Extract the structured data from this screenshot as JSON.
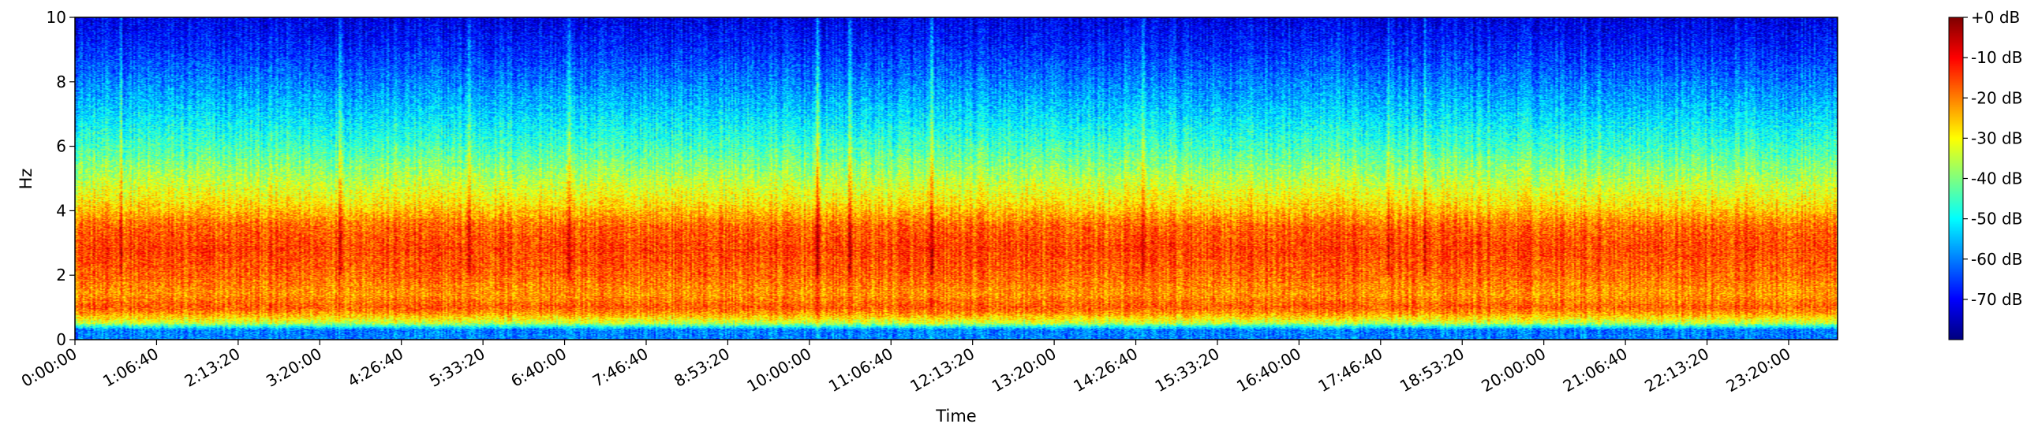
{
  "chart_data": {
    "type": "heatmap",
    "title": "",
    "xlabel": "Time",
    "ylabel": "Hz",
    "x_tick_labels": [
      "0:00:00",
      "1:06:40",
      "2:13:20",
      "3:20:00",
      "4:26:40",
      "5:33:20",
      "6:40:00",
      "7:46:40",
      "8:53:20",
      "10:00:00",
      "11:06:40",
      "12:13:20",
      "13:20:00",
      "14:26:40",
      "15:33:20",
      "16:40:00",
      "17:46:40",
      "18:53:20",
      "20:00:00",
      "21:06:40",
      "22:13:20",
      "23:20:00"
    ],
    "x_tick_seconds": [
      0,
      4000,
      8000,
      12000,
      16000,
      20000,
      24000,
      28000,
      32000,
      36000,
      40000,
      44000,
      48000,
      52000,
      56000,
      60000,
      64000,
      68000,
      72000,
      76000,
      80000,
      84000
    ],
    "xlim_seconds": [
      0,
      86400
    ],
    "y_ticks": [
      0,
      2,
      4,
      6,
      8,
      10
    ],
    "ylim": [
      0,
      10
    ],
    "colorbar": {
      "colormap": "jet",
      "range_db": [
        -80,
        0
      ],
      "ticks_db": [
        0,
        -10,
        -20,
        -30,
        -40,
        -50,
        -60,
        -70
      ],
      "tick_labels": [
        "+0 dB",
        "-10 dB",
        "-20 dB",
        "-30 dB",
        "-40 dB",
        "-50 dB",
        "-60 dB",
        "-70 dB"
      ]
    },
    "level_profile_db": [
      {
        "hz": 0.0,
        "db": -60
      },
      {
        "hz": 0.3,
        "db": -60
      },
      {
        "hz": 0.5,
        "db": -35
      },
      {
        "hz": 0.8,
        "db": -22
      },
      {
        "hz": 1.0,
        "db": -17
      },
      {
        "hz": 1.4,
        "db": -22
      },
      {
        "hz": 2.0,
        "db": -18
      },
      {
        "hz": 2.8,
        "db": -15
      },
      {
        "hz": 3.5,
        "db": -18
      },
      {
        "hz": 4.2,
        "db": -28
      },
      {
        "hz": 5.0,
        "db": -36
      },
      {
        "hz": 6.0,
        "db": -45
      },
      {
        "hz": 7.0,
        "db": -53
      },
      {
        "hz": 8.0,
        "db": -60
      },
      {
        "hz": 9.0,
        "db": -67
      },
      {
        "hz": 10.0,
        "db": -72
      }
    ],
    "transient_seconds": [
      2200,
      13000,
      19300,
      24200,
      36400,
      38000,
      42000,
      52400,
      64400,
      66200
    ],
    "grid": false,
    "legend": "colorbar right"
  }
}
